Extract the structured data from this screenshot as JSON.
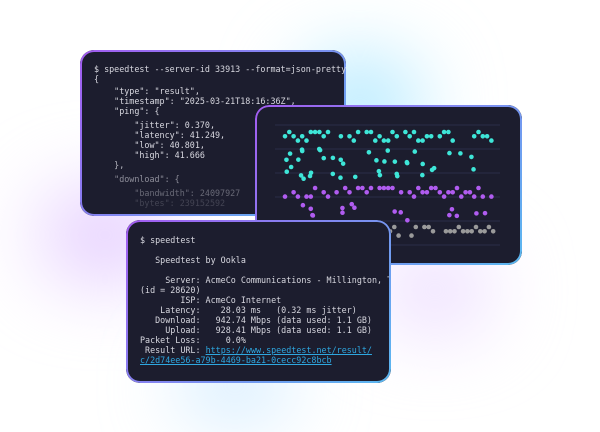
{
  "json_terminal": {
    "lines": [
      "$ speedtest --server-id 33913 --format=json-pretty",
      "{",
      "    \"type\": \"result\",",
      "    \"timestamp\": \"2025-03-21T18:16:36Z\",",
      "    \"ping\": {",
      "        \"jitter\": 0.370,",
      "        \"latency\": 41.249,",
      "        \"low\": 40.801,",
      "        \"high\": 41.666",
      "    },",
      "    \"download\": {",
      "        \"bandwidth\": 24097927",
      "        \"bytes\": 239152592"
    ]
  },
  "dot_plot": {
    "colors": {
      "upper": "#3ee6d8",
      "middle": "#b05cf0",
      "lower": "#9a9a9a",
      "grid": "#2a2d48"
    }
  },
  "cli_terminal": {
    "command": "$ speedtest",
    "title": "   Speedtest by Ookla",
    "server": "     Server: AcmeCo Communications - Millington, TN",
    "server_id": "(id = 28620)",
    "isp": "        ISP: AcmeCo Internet",
    "latency": "    Latency:    28.03 ms   (0.32 ms jitter)",
    "download": "   Download:   942.74 Mbps (data used: 1.1 GB)",
    "upload": "     Upload:   928.41 Mbps (data used: 1.1 GB)",
    "packet_loss": "Packet Loss:     0.0%",
    "result_label": " Result URL: ",
    "result_url_1": "https://www.speedtest.net/result/",
    "result_url_2": "c/2d74ee56-a79b-4469-ba21-0cecc92c8bcb"
  }
}
